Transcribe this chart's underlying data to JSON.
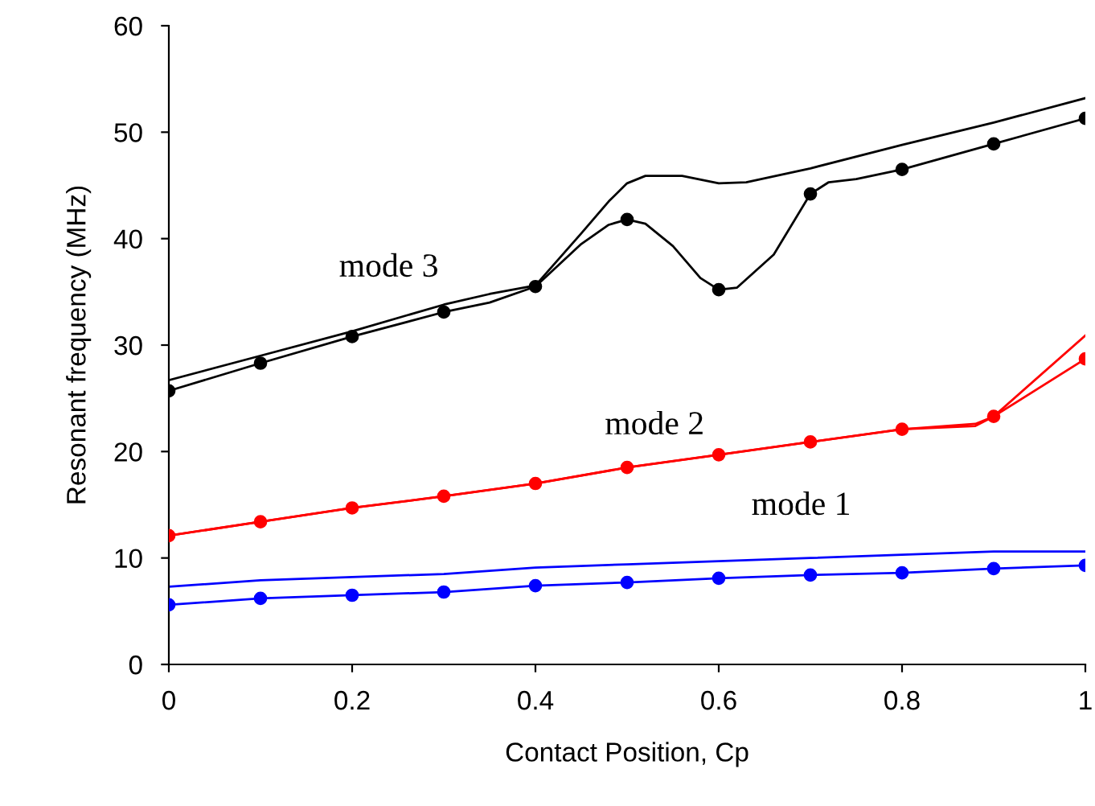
{
  "chart_data": {
    "type": "line",
    "xlabel": "Contact Position, Cp",
    "ylabel": "Resonant frequency (MHz)",
    "xlim": [
      0,
      1
    ],
    "ylim": [
      0,
      60
    ],
    "xticks": [
      0,
      0.2,
      0.4,
      0.6,
      0.8,
      1
    ],
    "yticks": [
      0,
      10,
      20,
      30,
      40,
      50,
      60
    ],
    "grid": false,
    "legend": false,
    "series": [
      {
        "color": "#000000",
        "marker": "none",
        "x": [
          0,
          0.1,
          0.2,
          0.3,
          0.35,
          0.4,
          0.45,
          0.48,
          0.5,
          0.52,
          0.56,
          0.6,
          0.63,
          0.7,
          0.8,
          0.9,
          1.0
        ],
        "values": [
          26.7,
          29.0,
          31.3,
          33.8,
          34.8,
          35.6,
          40.5,
          43.5,
          45.2,
          45.9,
          45.9,
          45.2,
          45.3,
          46.6,
          48.8,
          50.9,
          53.2
        ]
      },
      {
        "color": "#000000",
        "marker": "circle",
        "x": [
          0,
          0.1,
          0.2,
          0.3,
          0.35,
          0.4,
          0.45,
          0.48,
          0.5,
          0.52,
          0.55,
          0.58,
          0.6,
          0.62,
          0.66,
          0.7,
          0.72,
          0.75,
          0.8,
          0.9,
          1.0
        ],
        "values": [
          25.7,
          28.3,
          30.8,
          33.1,
          34.0,
          35.5,
          39.5,
          41.3,
          41.8,
          41.4,
          39.3,
          36.3,
          35.2,
          35.4,
          38.5,
          44.2,
          45.3,
          45.6,
          46.5,
          48.9,
          51.3
        ]
      },
      {
        "color": "#ff0000",
        "marker": "circle",
        "x": [
          0,
          0.1,
          0.2,
          0.3,
          0.4,
          0.5,
          0.6,
          0.7,
          0.8,
          0.88,
          0.9,
          1.0
        ],
        "values": [
          12.1,
          13.4,
          14.7,
          15.8,
          17.0,
          18.5,
          19.7,
          20.9,
          22.1,
          22.4,
          23.3,
          28.7
        ]
      },
      {
        "color": "#ff0000",
        "marker": "none",
        "x": [
          0,
          0.1,
          0.2,
          0.3,
          0.4,
          0.5,
          0.6,
          0.7,
          0.8,
          0.88,
          0.9,
          1.0
        ],
        "values": [
          12.1,
          13.4,
          14.7,
          15.8,
          17.0,
          18.5,
          19.7,
          20.9,
          22.1,
          22.6,
          23.3,
          30.9
        ]
      },
      {
        "color": "#0000ff",
        "marker": "none",
        "x": [
          0,
          0.1,
          0.2,
          0.3,
          0.4,
          0.5,
          0.6,
          0.7,
          0.8,
          0.9,
          1.0
        ],
        "values": [
          7.3,
          7.9,
          8.2,
          8.5,
          9.1,
          9.4,
          9.7,
          10.0,
          10.3,
          10.6,
          10.6
        ]
      },
      {
        "color": "#0000ff",
        "marker": "circle",
        "x": [
          0,
          0.1,
          0.2,
          0.3,
          0.4,
          0.5,
          0.6,
          0.7,
          0.8,
          0.9,
          1.0
        ],
        "values": [
          5.6,
          6.2,
          6.5,
          6.8,
          7.4,
          7.7,
          8.1,
          8.4,
          8.6,
          9.0,
          9.3
        ]
      }
    ],
    "annotations": [
      "mode 3",
      "mode 2",
      "mode 1"
    ]
  }
}
